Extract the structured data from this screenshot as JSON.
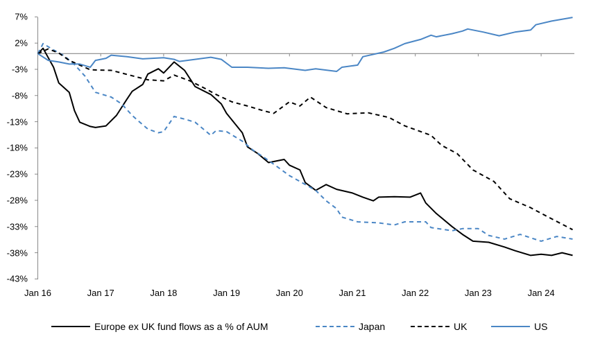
{
  "chart_data": {
    "type": "line",
    "title": "",
    "xlabel": "",
    "ylabel": "",
    "x_ticks": [
      "Jan 16",
      "Jan 17",
      "Jan 18",
      "Jan 19",
      "Jan 20",
      "Jan 21",
      "Jan 22",
      "Jan 23",
      "Jan 24"
    ],
    "y_ticks": [
      "7%",
      "2%",
      "-3%",
      "-8%",
      "-13%",
      "-18%",
      "-23%",
      "-28%",
      "-33%",
      "-38%",
      "-43%"
    ],
    "y_tick_values": [
      7,
      2,
      -3,
      -8,
      -13,
      -18,
      -23,
      -28,
      -33,
      -38,
      -43
    ],
    "ylim": [
      -43,
      7
    ],
    "xlim": [
      "2016-01",
      "2024-07"
    ],
    "grid": false,
    "zero_line": true,
    "legend_position": "bottom",
    "series": [
      {
        "name": "Europe ex UK fund flows as a % of AUM",
        "color": "#000000",
        "style": "solid",
        "points": [
          [
            "2016-01",
            0
          ],
          [
            "2016-02",
            1.0
          ],
          [
            "2016-04",
            -2.6
          ],
          [
            "2016-05",
            -5.6
          ],
          [
            "2016-07",
            -7.4
          ],
          [
            "2016-08",
            -10.9
          ],
          [
            "2016-09",
            -13.1
          ],
          [
            "2016-11",
            -13.9
          ],
          [
            "2016-12",
            -14.1
          ],
          [
            "2017-02",
            -13.8
          ],
          [
            "2017-04",
            -11.8
          ],
          [
            "2017-06",
            -8.7
          ],
          [
            "2017-07",
            -7.2
          ],
          [
            "2017-09",
            -5.9
          ],
          [
            "2017-10",
            -3.9
          ],
          [
            "2017-12",
            -2.9
          ],
          [
            "2018-01",
            -3.7
          ],
          [
            "2018-03",
            -1.6
          ],
          [
            "2018-05",
            -3.2
          ],
          [
            "2018-07",
            -6.3
          ],
          [
            "2018-10",
            -7.8
          ],
          [
            "2018-12",
            -9.6
          ],
          [
            "2019-01",
            -11.4
          ],
          [
            "2019-04",
            -15.1
          ],
          [
            "2019-05",
            -17.8
          ],
          [
            "2019-07",
            -19.1
          ],
          [
            "2019-09",
            -20.8
          ],
          [
            "2019-12",
            -20.2
          ],
          [
            "2020-01",
            -21.3
          ],
          [
            "2020-03",
            -22.2
          ],
          [
            "2020-04",
            -24.6
          ],
          [
            "2020-06",
            -26.1
          ],
          [
            "2020-08",
            -25.0
          ],
          [
            "2020-10",
            -25.9
          ],
          [
            "2021-01",
            -26.6
          ],
          [
            "2021-03",
            -27.4
          ],
          [
            "2021-05",
            -28.1
          ],
          [
            "2021-06",
            -27.4
          ],
          [
            "2021-09",
            -27.3
          ],
          [
            "2021-12",
            -27.4
          ],
          [
            "2022-02",
            -26.6
          ],
          [
            "2022-03",
            -28.5
          ],
          [
            "2022-05",
            -30.5
          ],
          [
            "2022-08",
            -33.0
          ],
          [
            "2022-10",
            -34.5
          ],
          [
            "2022-12",
            -35.8
          ],
          [
            "2023-03",
            -36.0
          ],
          [
            "2023-06",
            -36.9
          ],
          [
            "2023-08",
            -37.6
          ],
          [
            "2023-11",
            -38.5
          ],
          [
            "2024-01",
            -38.3
          ],
          [
            "2024-03",
            -38.5
          ],
          [
            "2024-05",
            -38.0
          ],
          [
            "2024-07",
            -38.5
          ]
        ]
      },
      {
        "name": "Japan",
        "color": "#4a86c5",
        "style": "dashed",
        "points": [
          [
            "2016-01",
            0
          ],
          [
            "2016-02",
            1.9
          ],
          [
            "2016-04",
            0.7
          ],
          [
            "2016-06",
            -0.4
          ],
          [
            "2016-08",
            -2.1
          ],
          [
            "2016-10",
            -4.3
          ],
          [
            "2016-12",
            -7.4
          ],
          [
            "2017-03",
            -8.3
          ],
          [
            "2017-05",
            -9.6
          ],
          [
            "2017-07",
            -11.8
          ],
          [
            "2017-08",
            -12.7
          ],
          [
            "2017-10",
            -14.4
          ],
          [
            "2017-12",
            -15.1
          ],
          [
            "2018-01",
            -14.9
          ],
          [
            "2018-03",
            -12.0
          ],
          [
            "2018-05",
            -12.5
          ],
          [
            "2018-07",
            -13.1
          ],
          [
            "2018-10",
            -15.6
          ],
          [
            "2018-11",
            -14.7
          ],
          [
            "2019-01",
            -14.9
          ],
          [
            "2019-04",
            -16.7
          ],
          [
            "2019-06",
            -18.4
          ],
          [
            "2019-08",
            -19.7
          ],
          [
            "2019-10",
            -21.1
          ],
          [
            "2020-01",
            -23.3
          ],
          [
            "2020-03",
            -24.4
          ],
          [
            "2020-06",
            -26.1
          ],
          [
            "2020-08",
            -28.1
          ],
          [
            "2020-10",
            -29.6
          ],
          [
            "2020-11",
            -31.2
          ],
          [
            "2021-02",
            -32.1
          ],
          [
            "2021-06",
            -32.3
          ],
          [
            "2021-09",
            -32.7
          ],
          [
            "2021-11",
            -32.1
          ],
          [
            "2022-03",
            -32.1
          ],
          [
            "2022-04",
            -33.2
          ],
          [
            "2022-08",
            -33.8
          ],
          [
            "2022-10",
            -33.4
          ],
          [
            "2023-01",
            -33.4
          ],
          [
            "2023-03",
            -34.7
          ],
          [
            "2023-06",
            -35.4
          ],
          [
            "2023-09",
            -34.5
          ],
          [
            "2024-01",
            -35.8
          ],
          [
            "2024-04",
            -34.9
          ],
          [
            "2024-07",
            -35.4
          ]
        ]
      },
      {
        "name": "UK",
        "color": "#000000",
        "style": "dashed",
        "points": [
          [
            "2016-01",
            0
          ],
          [
            "2016-03",
            0.9
          ],
          [
            "2016-05",
            0.1
          ],
          [
            "2016-07",
            -1.3
          ],
          [
            "2016-09",
            -2.2
          ],
          [
            "2016-11",
            -3.1
          ],
          [
            "2017-03",
            -3.2
          ],
          [
            "2017-05",
            -3.7
          ],
          [
            "2017-08",
            -4.5
          ],
          [
            "2017-10",
            -5.0
          ],
          [
            "2018-01",
            -5.2
          ],
          [
            "2018-03",
            -4.1
          ],
          [
            "2018-06",
            -5.2
          ],
          [
            "2018-09",
            -6.7
          ],
          [
            "2018-11",
            -7.8
          ],
          [
            "2019-02",
            -9.2
          ],
          [
            "2019-05",
            -10.0
          ],
          [
            "2019-08",
            -10.9
          ],
          [
            "2019-10",
            -11.4
          ],
          [
            "2020-01",
            -9.2
          ],
          [
            "2020-03",
            -10.0
          ],
          [
            "2020-05",
            -8.3
          ],
          [
            "2020-08",
            -10.3
          ],
          [
            "2020-12",
            -11.5
          ],
          [
            "2021-04",
            -11.3
          ],
          [
            "2021-08",
            -12.2
          ],
          [
            "2021-11",
            -13.8
          ],
          [
            "2022-04",
            -15.6
          ],
          [
            "2022-06",
            -17.5
          ],
          [
            "2022-09",
            -19.1
          ],
          [
            "2022-12",
            -22.2
          ],
          [
            "2023-04",
            -24.4
          ],
          [
            "2023-07",
            -27.7
          ],
          [
            "2023-11",
            -29.4
          ],
          [
            "2024-02",
            -31.0
          ],
          [
            "2024-07",
            -33.6
          ]
        ]
      },
      {
        "name": "US",
        "color": "#4a86c5",
        "style": "solid",
        "points": [
          [
            "2016-01",
            0
          ],
          [
            "2016-03",
            -1.3
          ],
          [
            "2016-05",
            -1.6
          ],
          [
            "2016-07",
            -2.0
          ],
          [
            "2016-09",
            -2.0
          ],
          [
            "2016-11",
            -2.6
          ],
          [
            "2016-12",
            -1.3
          ],
          [
            "2017-02",
            -0.9
          ],
          [
            "2017-03",
            -0.3
          ],
          [
            "2017-06",
            -0.6
          ],
          [
            "2017-09",
            -1.0
          ],
          [
            "2018-01",
            -0.8
          ],
          [
            "2018-03",
            -1.1
          ],
          [
            "2018-04",
            -1.5
          ],
          [
            "2018-07",
            -1.1
          ],
          [
            "2018-10",
            -0.7
          ],
          [
            "2018-12",
            -1.1
          ],
          [
            "2019-02",
            -2.6
          ],
          [
            "2019-05",
            -2.6
          ],
          [
            "2019-09",
            -2.8
          ],
          [
            "2019-12",
            -2.7
          ],
          [
            "2020-04",
            -3.2
          ],
          [
            "2020-06",
            -2.9
          ],
          [
            "2020-10",
            -3.4
          ],
          [
            "2020-11",
            -2.6
          ],
          [
            "2021-02",
            -2.2
          ],
          [
            "2021-03",
            -0.6
          ],
          [
            "2021-07",
            0.3
          ],
          [
            "2021-09",
            1.0
          ],
          [
            "2021-11",
            1.9
          ],
          [
            "2022-02",
            2.7
          ],
          [
            "2022-04",
            3.5
          ],
          [
            "2022-05",
            3.2
          ],
          [
            "2022-08",
            3.8
          ],
          [
            "2022-10",
            4.3
          ],
          [
            "2022-11",
            4.7
          ],
          [
            "2023-02",
            4.1
          ],
          [
            "2023-05",
            3.4
          ],
          [
            "2023-08",
            4.1
          ],
          [
            "2023-11",
            4.5
          ],
          [
            "2023-12",
            5.5
          ],
          [
            "2024-03",
            6.2
          ],
          [
            "2024-07",
            6.9
          ]
        ]
      }
    ]
  }
}
